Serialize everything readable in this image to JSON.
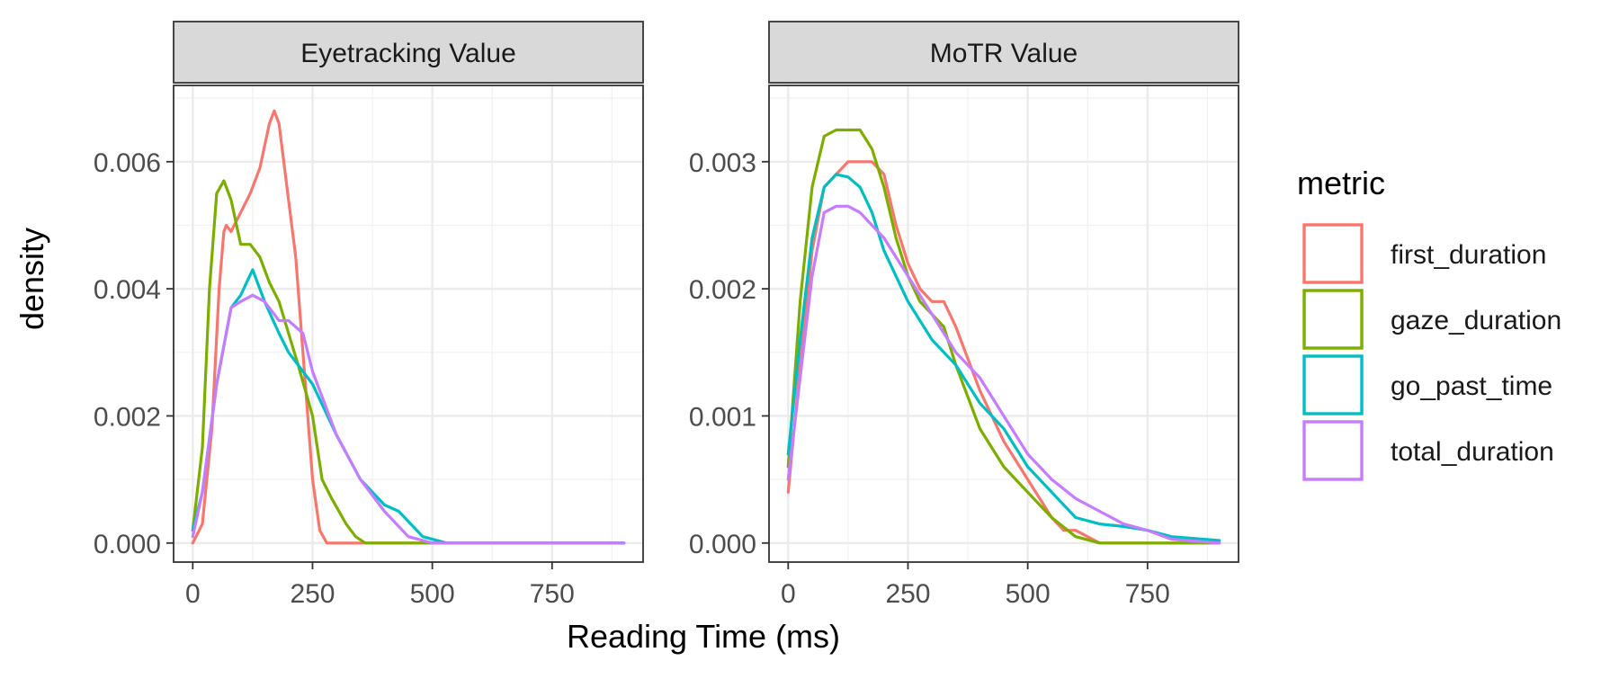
{
  "chart_data": {
    "type": "line",
    "xlabel": "Reading Time (ms)",
    "ylabel": "density",
    "legend": {
      "title": "metric",
      "position": "right"
    },
    "series_styles": [
      {
        "name": "first_duration",
        "color": "#F8766D"
      },
      {
        "name": "gaze_duration",
        "color": "#7CAE00"
      },
      {
        "name": "go_past_time",
        "color": "#00BFC4"
      },
      {
        "name": "total_duration",
        "color": "#C77CFF"
      }
    ],
    "panels": [
      {
        "title": "Eyetracking Value",
        "xlim": [
          -40,
          940
        ],
        "ylim": [
          -0.0003,
          0.0072
        ],
        "x_ticks": [
          0,
          250,
          500,
          750
        ],
        "x_tick_labels": [
          "0",
          "250",
          "500",
          "750"
        ],
        "y_ticks": [
          0.0,
          0.002,
          0.004,
          0.006
        ],
        "y_tick_labels": [
          "0.000",
          "0.002",
          "0.004",
          "0.006"
        ],
        "grid": true,
        "series": [
          {
            "name": "first_duration",
            "x": [
              0,
              20,
              40,
              55,
              65,
              70,
              80,
              100,
              120,
              140,
              160,
              170,
              180,
              200,
              215,
              230,
              250,
              265,
              280,
              300,
              350,
              400,
              500,
              900
            ],
            "y": [
              0.0,
              0.0003,
              0.0018,
              0.004,
              0.0049,
              0.005,
              0.0049,
              0.0052,
              0.0055,
              0.0059,
              0.0066,
              0.0068,
              0.0066,
              0.0054,
              0.0045,
              0.003,
              0.001,
              0.0002,
              0.0,
              0.0,
              0.0,
              0.0,
              0.0,
              0.0
            ]
          },
          {
            "name": "gaze_duration",
            "x": [
              0,
              20,
              35,
              50,
              65,
              80,
              100,
              120,
              140,
              160,
              180,
              200,
              220,
              250,
              270,
              290,
              320,
              340,
              360,
              380,
              500,
              900
            ],
            "y": [
              0.0002,
              0.0015,
              0.004,
              0.0055,
              0.0057,
              0.0054,
              0.0047,
              0.0047,
              0.0045,
              0.0041,
              0.0038,
              0.0033,
              0.0028,
              0.002,
              0.001,
              0.0007,
              0.0003,
              0.0001,
              0.0,
              0.0,
              0.0,
              0.0
            ]
          },
          {
            "name": "go_past_time",
            "x": [
              0,
              20,
              50,
              80,
              100,
              125,
              150,
              180,
              200,
              250,
              300,
              350,
              400,
              430,
              480,
              530,
              600,
              900
            ],
            "y": [
              0.0002,
              0.0008,
              0.0025,
              0.0037,
              0.0039,
              0.0043,
              0.0038,
              0.0033,
              0.003,
              0.0025,
              0.0017,
              0.001,
              0.0006,
              0.0005,
              0.0001,
              0.0,
              0.0,
              0.0
            ]
          },
          {
            "name": "total_duration",
            "x": [
              0,
              20,
              50,
              80,
              100,
              125,
              150,
              180,
              200,
              230,
              250,
              300,
              350,
              400,
              450,
              500,
              550,
              900
            ],
            "y": [
              0.0001,
              0.0008,
              0.0025,
              0.0037,
              0.0038,
              0.0039,
              0.0038,
              0.0035,
              0.0035,
              0.0033,
              0.0027,
              0.0017,
              0.001,
              0.0005,
              0.0001,
              0.0,
              0.0,
              0.0
            ]
          }
        ]
      },
      {
        "title": "MoTR Value",
        "xlim": [
          -40,
          940
        ],
        "ylim": [
          -0.00015,
          0.0036
        ],
        "x_ticks": [
          0,
          250,
          500,
          750
        ],
        "x_tick_labels": [
          "0",
          "250",
          "500",
          "750"
        ],
        "y_ticks": [
          0.0,
          0.001,
          0.002,
          0.003
        ],
        "y_tick_labels": [
          "0.000",
          "0.001",
          "0.002",
          "0.003"
        ],
        "grid": true,
        "series": [
          {
            "name": "first_duration",
            "x": [
              0,
              25,
              50,
              75,
              100,
              125,
              150,
              175,
              200,
              225,
              250,
              275,
              300,
              325,
              350,
              400,
              450,
              500,
              550,
              575,
              600,
              650,
              700,
              900
            ],
            "y": [
              0.0004,
              0.0014,
              0.0023,
              0.0028,
              0.0029,
              0.003,
              0.003,
              0.003,
              0.0029,
              0.0025,
              0.0022,
              0.002,
              0.0019,
              0.0019,
              0.0017,
              0.0012,
              0.0008,
              0.0005,
              0.0002,
              0.0001,
              0.0001,
              0.0,
              0.0,
              0.0
            ]
          },
          {
            "name": "gaze_duration",
            "x": [
              0,
              25,
              50,
              75,
              100,
              125,
              150,
              175,
              200,
              225,
              250,
              275,
              300,
              325,
              350,
              400,
              450,
              500,
              550,
              600,
              650,
              700,
              900
            ],
            "y": [
              0.0006,
              0.0019,
              0.0028,
              0.0032,
              0.00325,
              0.00325,
              0.00325,
              0.0031,
              0.0028,
              0.0024,
              0.0021,
              0.0019,
              0.0018,
              0.0017,
              0.0014,
              0.0009,
              0.0006,
              0.0004,
              0.0002,
              5e-05,
              0.0,
              0.0,
              0.0
            ]
          },
          {
            "name": "go_past_time",
            "x": [
              0,
              25,
              50,
              75,
              100,
              125,
              150,
              175,
              200,
              250,
              300,
              350,
              400,
              450,
              500,
              550,
              600,
              650,
              700,
              750,
              800,
              900
            ],
            "y": [
              0.0007,
              0.0016,
              0.0024,
              0.0028,
              0.0029,
              0.00288,
              0.0028,
              0.0026,
              0.0023,
              0.0019,
              0.0016,
              0.0014,
              0.0011,
              0.0009,
              0.0006,
              0.0004,
              0.0002,
              0.00015,
              0.00013,
              0.0001,
              5e-05,
              2e-05
            ]
          },
          {
            "name": "total_duration",
            "x": [
              0,
              25,
              50,
              75,
              100,
              125,
              150,
              175,
              200,
              250,
              300,
              350,
              400,
              450,
              500,
              550,
              600,
              650,
              700,
              750,
              800,
              900
            ],
            "y": [
              0.0005,
              0.0013,
              0.0021,
              0.0026,
              0.00265,
              0.00265,
              0.0026,
              0.0025,
              0.0024,
              0.0021,
              0.0018,
              0.0015,
              0.0013,
              0.001,
              0.0007,
              0.0005,
              0.00035,
              0.00025,
              0.00015,
              0.0001,
              3e-05,
              0.0
            ]
          }
        ]
      }
    ]
  }
}
